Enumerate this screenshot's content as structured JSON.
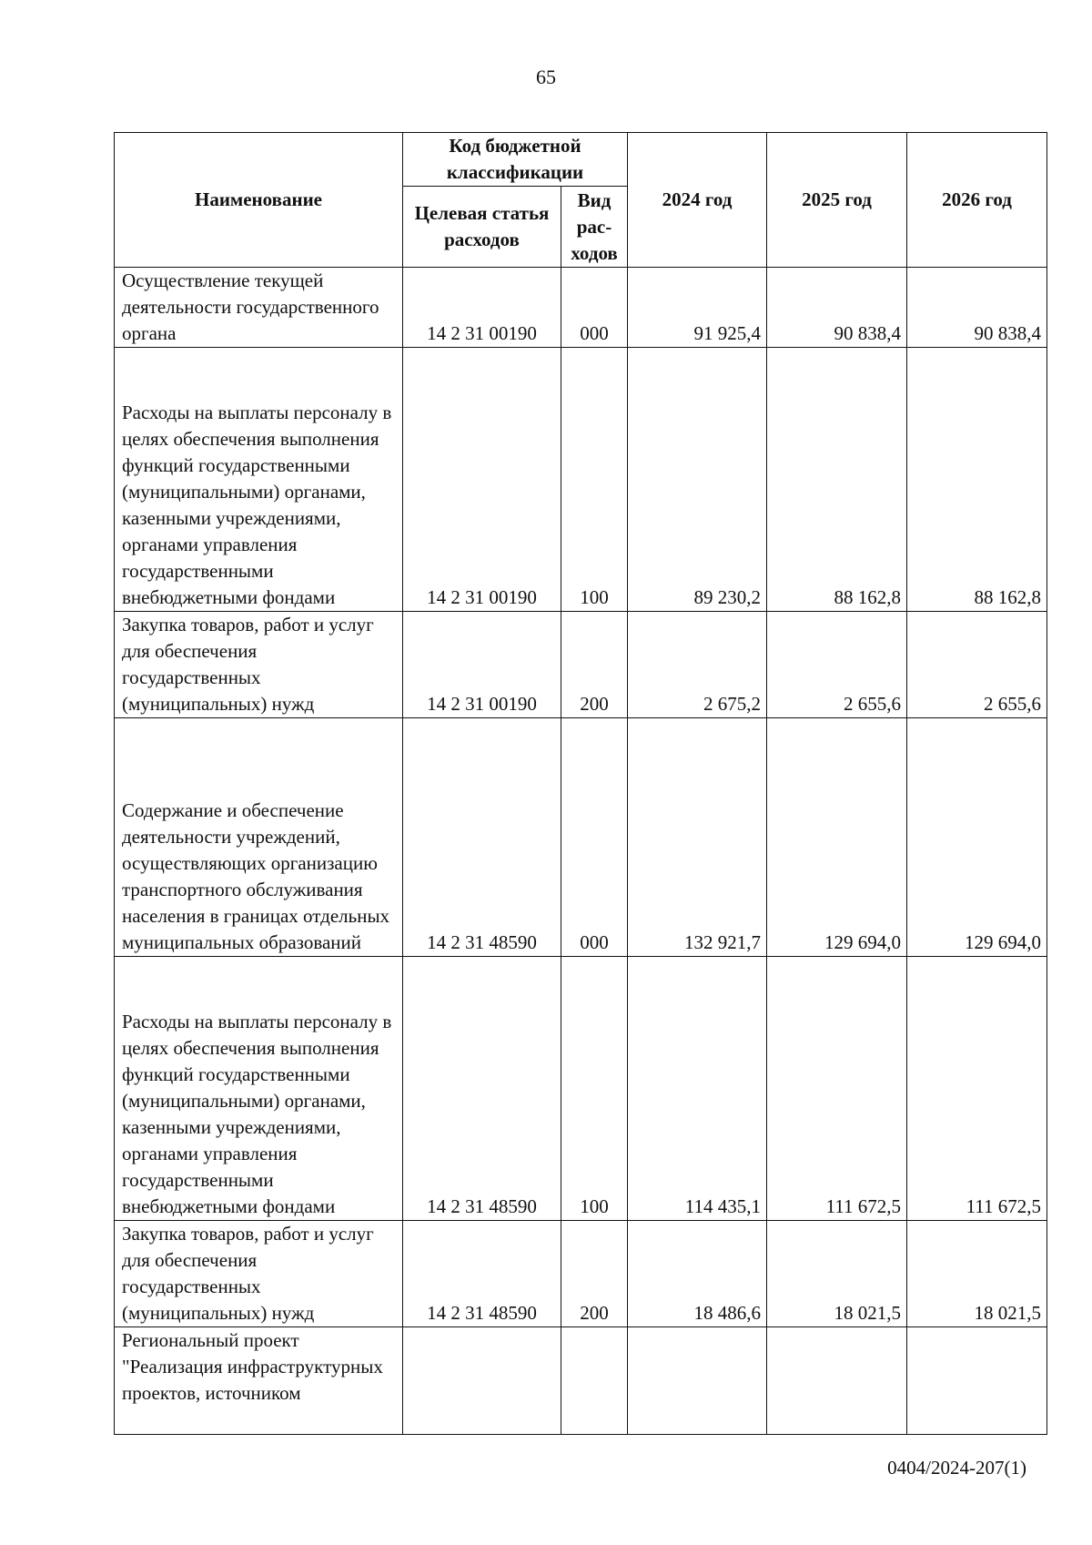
{
  "page_number": "65",
  "footer_code": "0404/2024-207(1)",
  "header": {
    "name": "Наименование",
    "kbk": "Код бюджетной классификации",
    "target": "Целевая статья расходов",
    "kind": "Вид рас-ходов",
    "y2024": "2024 год",
    "y2025": "2025 год",
    "y2026": "2026 год"
  },
  "rows": [
    {
      "name": "Осуществление текущей деятельности государственного органа",
      "code": "14 2 31 00190",
      "kind": "000",
      "y2024": "91 925,4",
      "y2025": "90 838,4",
      "y2026": "90 838,4"
    },
    {
      "name": "Расходы на выплаты персоналу в целях обеспечения выполнения функций государственными (муниципальными) органами, казенными учреждениями, органами управления государственными внебюджетными фондами",
      "code": "14 2 31 00190",
      "kind": "100",
      "y2024": "89 230,2",
      "y2025": "88 162,8",
      "y2026": "88 162,8"
    },
    {
      "name": "Закупка товаров, работ и услуг для обеспечения государственных (муниципальных) нужд",
      "code": "14 2 31 00190",
      "kind": "200",
      "y2024": "2 675,2",
      "y2025": "2 655,6",
      "y2026": "2 655,6"
    },
    {
      "name": "Содержание и обеспечение деятельности учреждений, осуществляющих организацию транспортного обслуживания населения в границах отдельных муниципальных образований",
      "code": "14 2 31 48590",
      "kind": "000",
      "y2024": "132 921,7",
      "y2025": "129 694,0",
      "y2026": "129 694,0"
    },
    {
      "name": "Расходы на выплаты персоналу в целях обеспечения выполнения функций государственными (муниципальными) органами, казенными учреждениями, органами управления государственными внебюджетными фондами",
      "code": "14 2 31 48590",
      "kind": "100",
      "y2024": "114 435,1",
      "y2025": "111 672,5",
      "y2026": "111 672,5"
    },
    {
      "name": "Закупка товаров, работ и услуг для обеспечения государственных (муниципальных) нужд",
      "code": "14 2 31 48590",
      "kind": "200",
      "y2024": "18 486,6",
      "y2025": "18 021,5",
      "y2026": "18 021,5"
    },
    {
      "name": "Региональный проект \"Реализация инфраструктурных проектов, источником",
      "code": "",
      "kind": "",
      "y2024": "",
      "y2025": "",
      "y2026": ""
    }
  ]
}
